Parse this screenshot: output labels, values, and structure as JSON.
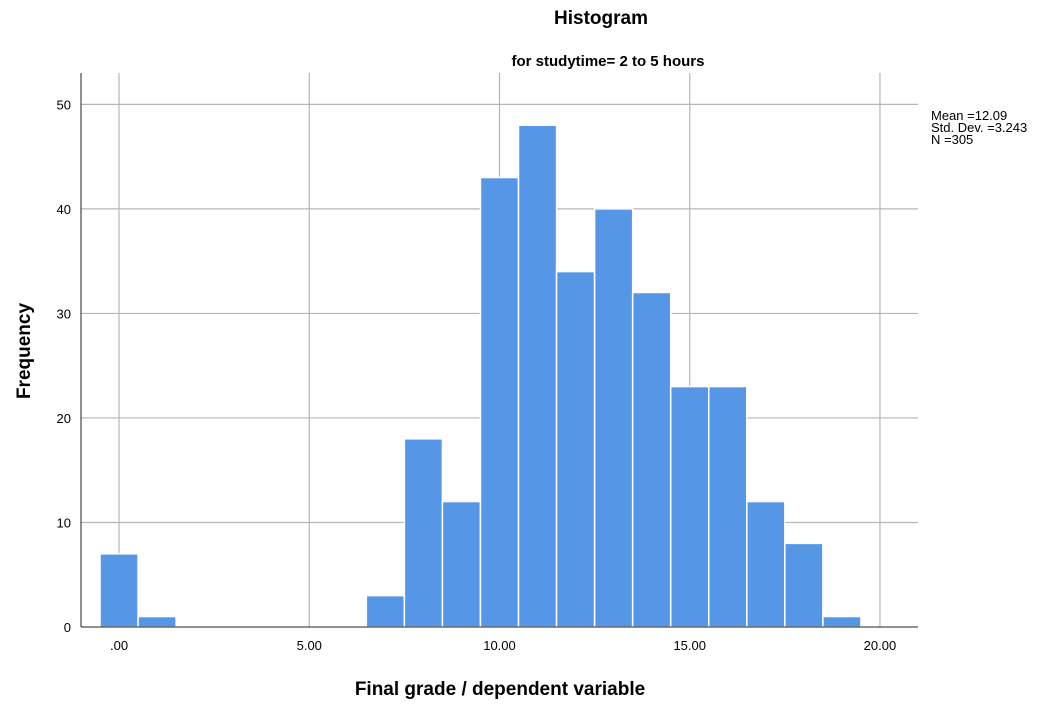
{
  "chart_data": {
    "type": "bar",
    "title": "Histogram",
    "subtitle": "for studytime= 2 to 5 hours",
    "xlabel": "Final grade / dependent variable",
    "ylabel": "Frequency",
    "xlim": [
      -1.0,
      21.0
    ],
    "ylim": [
      0,
      53
    ],
    "x_ticks": [
      0,
      5,
      10,
      15,
      20
    ],
    "x_tick_labels": [
      ".00",
      "5.00",
      "10.00",
      "15.00",
      "20.00"
    ],
    "y_ticks": [
      0,
      10,
      20,
      30,
      40,
      50
    ],
    "y_tick_labels": [
      "0",
      "10",
      "20",
      "30",
      "40",
      "50"
    ],
    "grid": true,
    "bin_width": 1.0,
    "bins": [
      {
        "start": -0.5,
        "end": 0.5,
        "count": 7
      },
      {
        "start": 0.5,
        "end": 1.5,
        "count": 1
      },
      {
        "start": 6.5,
        "end": 7.5,
        "count": 3
      },
      {
        "start": 7.5,
        "end": 8.5,
        "count": 18
      },
      {
        "start": 8.5,
        "end": 9.5,
        "count": 12
      },
      {
        "start": 9.5,
        "end": 10.5,
        "count": 43
      },
      {
        "start": 10.5,
        "end": 11.5,
        "count": 48
      },
      {
        "start": 11.5,
        "end": 12.5,
        "count": 34
      },
      {
        "start": 12.5,
        "end": 13.5,
        "count": 40
      },
      {
        "start": 13.5,
        "end": 14.5,
        "count": 32
      },
      {
        "start": 14.5,
        "end": 15.5,
        "count": 23
      },
      {
        "start": 15.5,
        "end": 16.5,
        "count": 23
      },
      {
        "start": 16.5,
        "end": 17.5,
        "count": 12
      },
      {
        "start": 17.5,
        "end": 18.5,
        "count": 8
      },
      {
        "start": 18.5,
        "end": 19.5,
        "count": 1
      }
    ],
    "bar_color": "#5596E6",
    "stats": [
      "Mean =12.09",
      "Std. Dev. =3.243",
      "N =305"
    ]
  }
}
